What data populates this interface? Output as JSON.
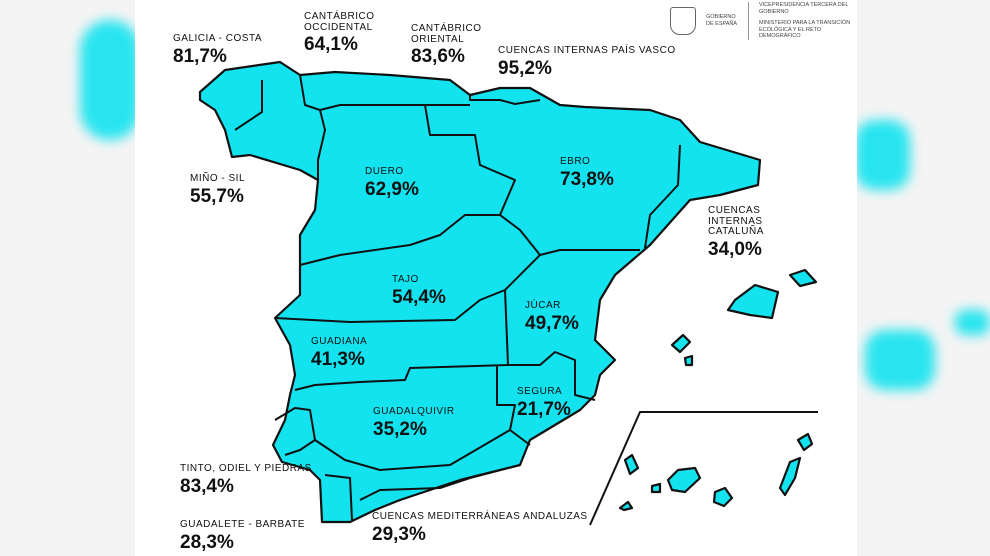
{
  "header": {
    "gov": "GOBIERNO DE ESPAÑA",
    "vice": "VICEPRESIDENCIA TERCERA DEL GOBIERNO",
    "ministry": "MINISTERIO PARA LA TRANSICIÓN ECOLÓGICA Y EL RETO DEMOGRÁFICO"
  },
  "colors": {
    "fill": "#12e3ef",
    "stroke": "#111111"
  },
  "basins": [
    {
      "name": "GALICIA - COSTA",
      "value": "81,7%"
    },
    {
      "name": "CANTÁBRICO OCCIDENTAL",
      "value": "64,1%"
    },
    {
      "name": "CANTÁBRICO ORIENTAL",
      "value": "83,6%"
    },
    {
      "name": "CUENCAS INTERNAS PAÍS VASCO",
      "value": "95,2%"
    },
    {
      "name": "MIÑO - SIL",
      "value": "55,7%"
    },
    {
      "name": "DUERO",
      "value": "62,9%"
    },
    {
      "name": "EBRO",
      "value": "73,8%"
    },
    {
      "name": "CUENCAS INTERNAS CATALUÑA",
      "value": "34,0%"
    },
    {
      "name": "TAJO",
      "value": "54,4%"
    },
    {
      "name": "JÚCAR",
      "value": "49,7%"
    },
    {
      "name": "GUADIANA",
      "value": "41,3%"
    },
    {
      "name": "SEGURA",
      "value": "21,7%"
    },
    {
      "name": "GUADALQUIVIR",
      "value": "35,2%"
    },
    {
      "name": "TINTO, ODIEL Y PIEDRAS",
      "value": "83,4%"
    },
    {
      "name": "GUADALETE - BARBATE",
      "value": "28,3%"
    },
    {
      "name": "CUENCAS MEDITERRÁNEAS ANDALUZAS",
      "value": "29,3%"
    }
  ]
}
